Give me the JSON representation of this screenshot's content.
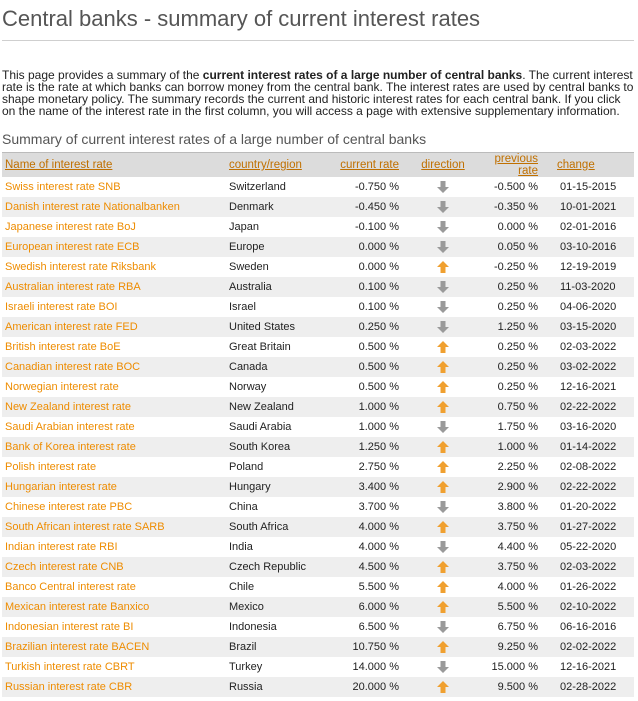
{
  "page": {
    "title": "Central banks - summary of current interest rates",
    "intro_1": "This page provides a summary of the ",
    "intro_bold": "current interest rates of a large number of central banks",
    "intro_2": ". The current interest rate is the rate at which banks can borrow money from the central bank. The interest rates are used by central banks to shape monetary policy. The summary records the current and historic interest rates for each central bank. If you click on the name of the interest rate in the first column, you will access a page with extensive supplementary information.",
    "table_title": "Summary of current interest rates of a large number of central banks"
  },
  "table": {
    "headers": {
      "name": "Name of interest rate",
      "country": "country/region",
      "current": "current rate",
      "direction": "direction",
      "previous": "previous rate",
      "change": "change"
    },
    "colors": {
      "up": "#f0a030",
      "down": "#9a9a9a"
    },
    "rows": [
      {
        "name": "Swiss interest rate SNB",
        "country": "Switzerland",
        "current": "-0.750 %",
        "direction": "down",
        "previous": "-0.500 %",
        "change": "01-15-2015"
      },
      {
        "name": "Danish interest rate Nationalbanken",
        "country": "Denmark",
        "current": "-0.450 %",
        "direction": "down",
        "previous": "-0.350 %",
        "change": "10-01-2021"
      },
      {
        "name": "Japanese interest rate BoJ",
        "country": "Japan",
        "current": "-0.100 %",
        "direction": "down",
        "previous": "0.000 %",
        "change": "02-01-2016"
      },
      {
        "name": "European interest rate ECB",
        "country": "Europe",
        "current": "0.000 %",
        "direction": "down",
        "previous": "0.050 %",
        "change": "03-10-2016"
      },
      {
        "name": "Swedish interest rate Riksbank",
        "country": "Sweden",
        "current": "0.000 %",
        "direction": "up",
        "previous": "-0.250 %",
        "change": "12-19-2019"
      },
      {
        "name": "Australian interest rate RBA",
        "country": "Australia",
        "current": "0.100 %",
        "direction": "down",
        "previous": "0.250 %",
        "change": "11-03-2020"
      },
      {
        "name": "Israeli interest rate BOI",
        "country": "Israel",
        "current": "0.100 %",
        "direction": "down",
        "previous": "0.250 %",
        "change": "04-06-2020"
      },
      {
        "name": "American interest rate FED",
        "country": "United States",
        "current": "0.250 %",
        "direction": "down",
        "previous": "1.250 %",
        "change": "03-15-2020"
      },
      {
        "name": "British interest rate BoE",
        "country": "Great Britain",
        "current": "0.500 %",
        "direction": "up",
        "previous": "0.250 %",
        "change": "02-03-2022"
      },
      {
        "name": "Canadian interest rate BOC",
        "country": "Canada",
        "current": "0.500 %",
        "direction": "up",
        "previous": "0.250 %",
        "change": "03-02-2022"
      },
      {
        "name": "Norwegian interest rate",
        "country": "Norway",
        "current": "0.500 %",
        "direction": "up",
        "previous": "0.250 %",
        "change": "12-16-2021"
      },
      {
        "name": "New Zealand interest rate",
        "country": "New Zealand",
        "current": "1.000 %",
        "direction": "up",
        "previous": "0.750 %",
        "change": "02-22-2022"
      },
      {
        "name": "Saudi Arabian interest rate",
        "country": "Saudi Arabia",
        "current": "1.000 %",
        "direction": "down",
        "previous": "1.750 %",
        "change": "03-16-2020"
      },
      {
        "name": "Bank of Korea interest rate",
        "country": "South Korea",
        "current": "1.250 %",
        "direction": "up",
        "previous": "1.000 %",
        "change": "01-14-2022"
      },
      {
        "name": "Polish interest rate",
        "country": "Poland",
        "current": "2.750 %",
        "direction": "up",
        "previous": "2.250 %",
        "change": "02-08-2022"
      },
      {
        "name": "Hungarian interest rate",
        "country": "Hungary",
        "current": "3.400 %",
        "direction": "up",
        "previous": "2.900 %",
        "change": "02-22-2022"
      },
      {
        "name": "Chinese interest rate PBC",
        "country": "China",
        "current": "3.700 %",
        "direction": "down",
        "previous": "3.800 %",
        "change": "01-20-2022"
      },
      {
        "name": "South African interest rate SARB",
        "country": "South Africa",
        "current": "4.000 %",
        "direction": "up",
        "previous": "3.750 %",
        "change": "01-27-2022"
      },
      {
        "name": "Indian interest rate RBI",
        "country": "India",
        "current": "4.000 %",
        "direction": "down",
        "previous": "4.400 %",
        "change": "05-22-2020"
      },
      {
        "name": "Czech interest rate CNB",
        "country": "Czech Republic",
        "current": "4.500 %",
        "direction": "up",
        "previous": "3.750 %",
        "change": "02-03-2022"
      },
      {
        "name": "Banco Central interest rate",
        "country": "Chile",
        "current": "5.500 %",
        "direction": "up",
        "previous": "4.000 %",
        "change": "01-26-2022"
      },
      {
        "name": "Mexican interest rate Banxico",
        "country": "Mexico",
        "current": "6.000 %",
        "direction": "up",
        "previous": "5.500 %",
        "change": "02-10-2022"
      },
      {
        "name": "Indonesian interest rate BI",
        "country": "Indonesia",
        "current": "6.500 %",
        "direction": "down",
        "previous": "6.750 %",
        "change": "06-16-2016"
      },
      {
        "name": "Brazilian interest rate BACEN",
        "country": "Brazil",
        "current": "10.750 %",
        "direction": "up",
        "previous": "9.250 %",
        "change": "02-02-2022"
      },
      {
        "name": "Turkish interest rate CBRT",
        "country": "Turkey",
        "current": "14.000 %",
        "direction": "down",
        "previous": "15.000 %",
        "change": "12-16-2021"
      },
      {
        "name": "Russian interest rate CBR",
        "country": "Russia",
        "current": "20.000 %",
        "direction": "up",
        "previous": "9.500 %",
        "change": "02-28-2022"
      }
    ]
  }
}
